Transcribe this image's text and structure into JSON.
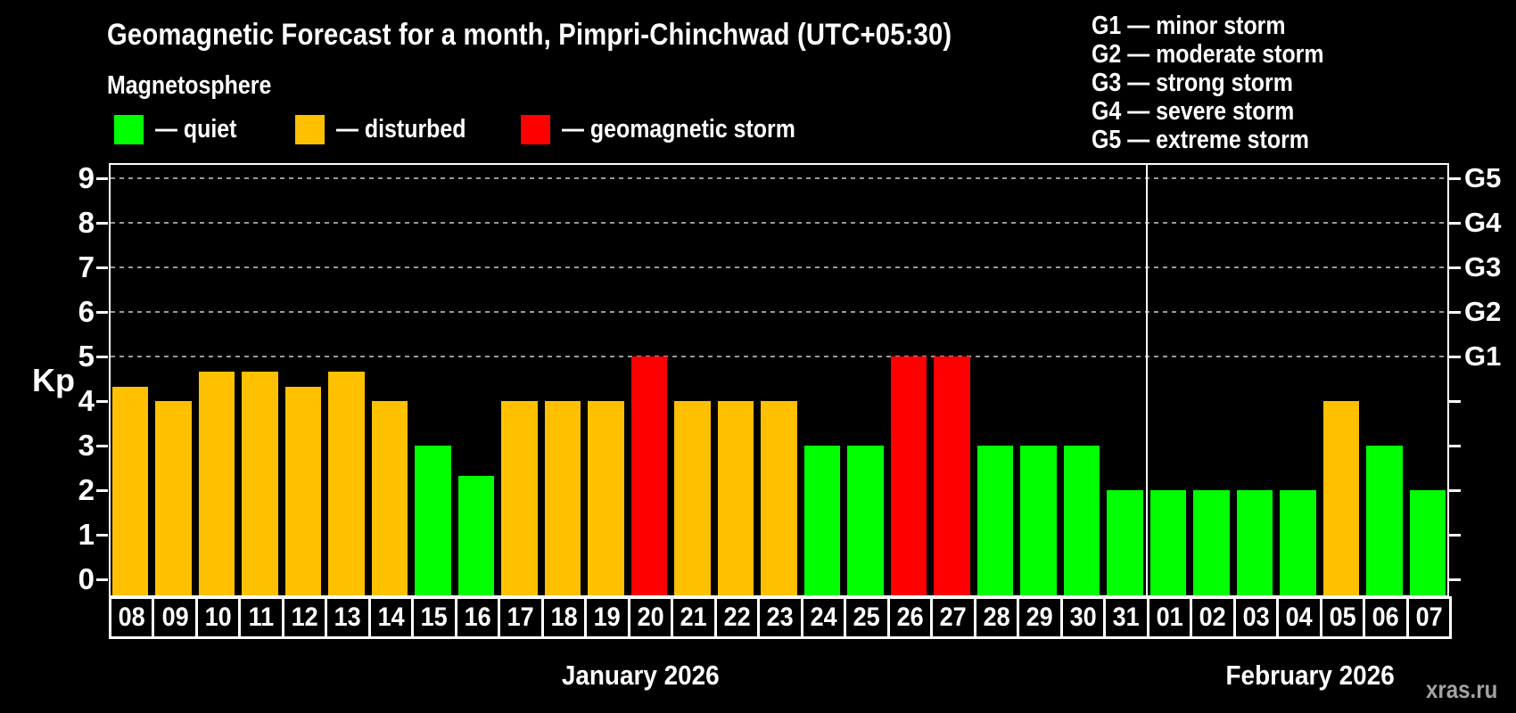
{
  "title": "Geomagnetic Forecast for a month, Pimpri-Chinchwad (UTC+05:30)",
  "subtitle": "Magnetosphere",
  "y_axis_label": "Kp",
  "watermark": "xras.ru",
  "legend": {
    "items": [
      {
        "status": "quiet",
        "label": "— quiet",
        "color": "#00ff00"
      },
      {
        "status": "disturbed",
        "label": "— disturbed",
        "color": "#ffc000"
      },
      {
        "status": "storm",
        "label": "— geomagnetic storm",
        "color": "#ff0000"
      }
    ]
  },
  "storm_scale_legend": [
    "G1 — minor storm",
    "G2 — moderate storm",
    "G3 — strong storm",
    "G4 — severe storm",
    "G5 — extreme storm"
  ],
  "chart_data": {
    "type": "bar",
    "title": "Geomagnetic Forecast for a month, Pimpri-Chinchwad (UTC+05:30)",
    "xlabel": "",
    "ylabel": "Kp",
    "ylim": [
      0,
      9.4
    ],
    "yticks": [
      0,
      1,
      2,
      3,
      4,
      5,
      6,
      7,
      8,
      9
    ],
    "grid": "horizontal dashed at Kp 5-9",
    "gridlines_at_kp": [
      5,
      6,
      7,
      8,
      9
    ],
    "legend_position": "top-left",
    "right_axis_labels": [
      {
        "label": "G1",
        "kp": 5
      },
      {
        "label": "G2",
        "kp": 6
      },
      {
        "label": "G3",
        "kp": 7
      },
      {
        "label": "G4",
        "kp": 8
      },
      {
        "label": "G5",
        "kp": 9
      }
    ],
    "color_map": {
      "quiet": "#00ff00",
      "disturbed": "#ffc000",
      "storm": "#ff0000"
    },
    "series": [
      {
        "month": "January 2026",
        "points": [
          {
            "day": "08",
            "kp": 4.33,
            "status": "disturbed"
          },
          {
            "day": "09",
            "kp": 4.0,
            "status": "disturbed"
          },
          {
            "day": "10",
            "kp": 4.67,
            "status": "disturbed"
          },
          {
            "day": "11",
            "kp": 4.67,
            "status": "disturbed"
          },
          {
            "day": "12",
            "kp": 4.33,
            "status": "disturbed"
          },
          {
            "day": "13",
            "kp": 4.67,
            "status": "disturbed"
          },
          {
            "day": "14",
            "kp": 4.0,
            "status": "disturbed"
          },
          {
            "day": "15",
            "kp": 3.0,
            "status": "quiet"
          },
          {
            "day": "16",
            "kp": 2.33,
            "status": "quiet"
          },
          {
            "day": "17",
            "kp": 4.0,
            "status": "disturbed"
          },
          {
            "day": "18",
            "kp": 4.0,
            "status": "disturbed"
          },
          {
            "day": "19",
            "kp": 4.0,
            "status": "disturbed"
          },
          {
            "day": "20",
            "kp": 5.0,
            "status": "storm"
          },
          {
            "day": "21",
            "kp": 4.0,
            "status": "disturbed"
          },
          {
            "day": "22",
            "kp": 4.0,
            "status": "disturbed"
          },
          {
            "day": "23",
            "kp": 4.0,
            "status": "disturbed"
          },
          {
            "day": "24",
            "kp": 3.0,
            "status": "quiet"
          },
          {
            "day": "25",
            "kp": 3.0,
            "status": "quiet"
          },
          {
            "day": "26",
            "kp": 5.0,
            "status": "storm"
          },
          {
            "day": "27",
            "kp": 5.0,
            "status": "storm"
          },
          {
            "day": "28",
            "kp": 3.0,
            "status": "quiet"
          },
          {
            "day": "29",
            "kp": 3.0,
            "status": "quiet"
          },
          {
            "day": "30",
            "kp": 3.0,
            "status": "quiet"
          },
          {
            "day": "31",
            "kp": 2.0,
            "status": "quiet"
          }
        ]
      },
      {
        "month": "February 2026",
        "points": [
          {
            "day": "01",
            "kp": 2.0,
            "status": "quiet"
          },
          {
            "day": "02",
            "kp": 2.0,
            "status": "quiet"
          },
          {
            "day": "03",
            "kp": 2.0,
            "status": "quiet"
          },
          {
            "day": "04",
            "kp": 2.0,
            "status": "quiet"
          },
          {
            "day": "05",
            "kp": 4.0,
            "status": "disturbed"
          },
          {
            "day": "06",
            "kp": 3.0,
            "status": "quiet"
          },
          {
            "day": "07",
            "kp": 2.0,
            "status": "quiet"
          }
        ]
      }
    ]
  }
}
